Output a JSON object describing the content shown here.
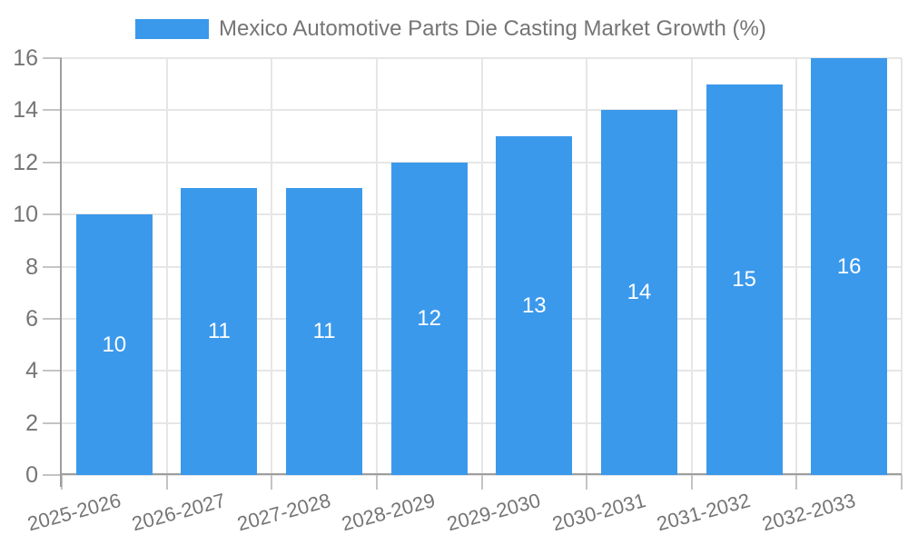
{
  "chart_data": {
    "type": "bar",
    "title": "",
    "legend": {
      "position": "top",
      "label": "Mexico Automotive Parts Die Casting Market Growth (%)"
    },
    "series_name": "Mexico Automotive Parts Die Casting Market Growth (%)",
    "categories": [
      "2025-2026",
      "2026-2027",
      "2027-2028",
      "2028-2029",
      "2029-2030",
      "2030-2031",
      "2031-2032",
      "2032-2033"
    ],
    "values": [
      10,
      11,
      11,
      12,
      13,
      14,
      15,
      16
    ],
    "bar_value_labels": [
      "10",
      "11",
      "11",
      "12",
      "13",
      "14",
      "15",
      "16"
    ],
    "xlabel": "",
    "ylabel": "",
    "ylim": [
      0,
      16
    ],
    "yticks": [
      0,
      2,
      4,
      6,
      8,
      10,
      12,
      14,
      16
    ],
    "grid": true,
    "colors": {
      "bar": "#3B99EC",
      "axis_text": "#757575",
      "legend_text": "#757575",
      "bar_label_text": "#FFFFFF",
      "gridline": "#E6E6E6",
      "tick": "#C4C4C4",
      "axis_line": "#9E9E9E",
      "background": "#FFFFFF"
    }
  }
}
